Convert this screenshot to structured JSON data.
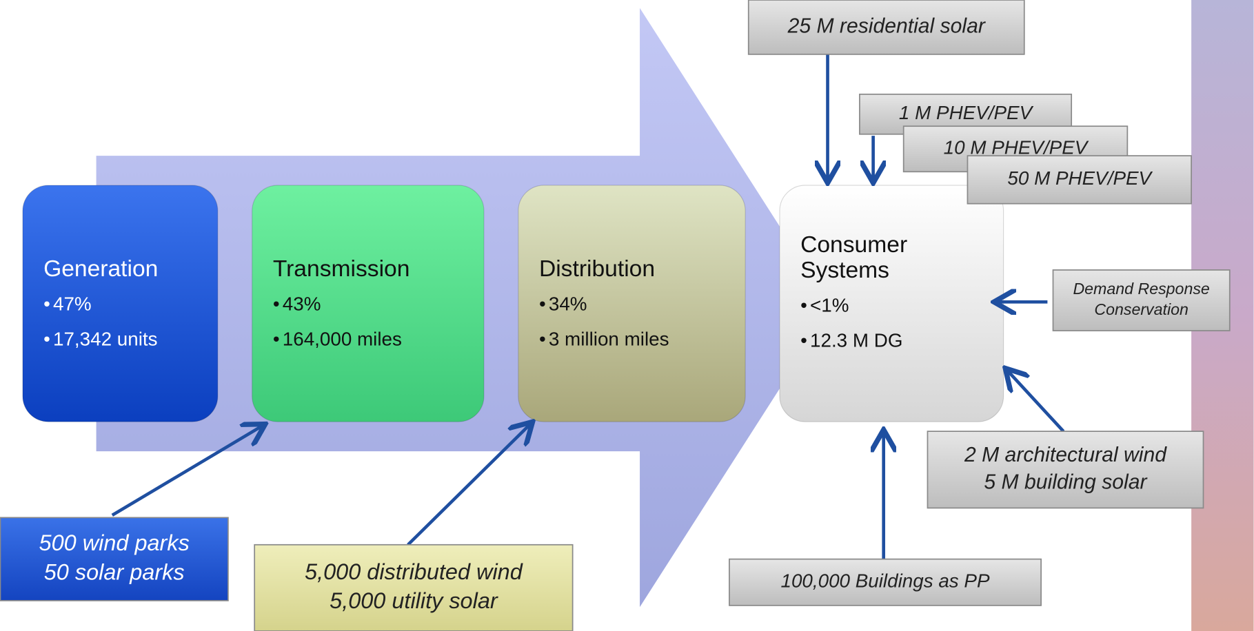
{
  "stages": [
    {
      "title": [
        "Generation"
      ],
      "bullets": [
        "47%",
        "17,342 units"
      ]
    },
    {
      "title": [
        "Transmission"
      ],
      "bullets": [
        "43%",
        "164,000 miles"
      ]
    },
    {
      "title": [
        "Distribution"
      ],
      "bullets": [
        "34%",
        "3 million miles"
      ]
    },
    {
      "title": [
        "Consumer",
        "Systems"
      ],
      "bullets": [
        "<1%",
        "12.3 M DG"
      ]
    }
  ],
  "callouts": [
    {
      "lines": [
        "25 M residential solar"
      ]
    },
    {
      "lines": [
        "1 M PHEV/PEV"
      ]
    },
    {
      "lines": [
        "10 M PHEV/PEV"
      ]
    },
    {
      "lines": [
        "50 M PHEV/PEV"
      ]
    },
    {
      "lines": [
        "Demand Response",
        "Conservation"
      ]
    },
    {
      "lines": [
        "2 M architectural wind",
        "5 M building solar"
      ]
    },
    {
      "lines": [
        "100,000 Buildings as PP"
      ]
    },
    {
      "lines": [
        "500 wind parks",
        "50 solar parks"
      ]
    },
    {
      "lines": [
        "5,000 distributed wind",
        "5,000 utility solar"
      ]
    }
  ]
}
